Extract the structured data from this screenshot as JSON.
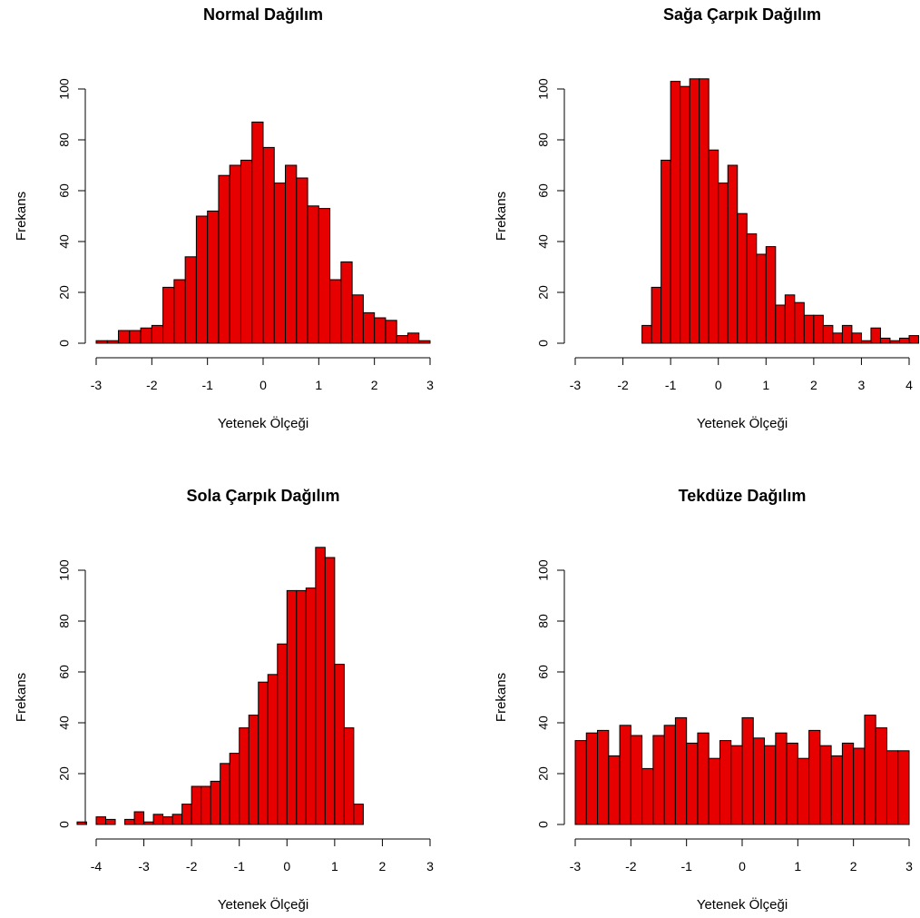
{
  "colors": {
    "bar_fill": "#e60000",
    "bar_stroke": "#000000"
  },
  "chart_data": [
    {
      "type": "bar",
      "title": "Normal Dağılım",
      "xlabel": "Yetenek Ölçeği",
      "ylabel": "Frekans",
      "xlim": [
        -3,
        3
      ],
      "ylim": [
        0,
        100
      ],
      "x_ticks": [
        -3,
        -2,
        -1,
        0,
        1,
        2,
        3
      ],
      "y_ticks": [
        0,
        20,
        40,
        60,
        80,
        100
      ],
      "bin_start": -3.0,
      "bin_width": 0.2,
      "values": [
        1,
        1,
        5,
        5,
        6,
        7,
        22,
        25,
        34,
        50,
        52,
        66,
        70,
        72,
        87,
        77,
        63,
        70,
        65,
        54,
        53,
        25,
        32,
        19,
        12,
        10,
        9,
        3,
        4,
        1
      ]
    },
    {
      "type": "bar",
      "title": "Sağa Çarpık Dağılım",
      "xlabel": "Yetenek Ölçeği",
      "ylabel": "Frekans",
      "xlim": [
        -3,
        4
      ],
      "ylim": [
        0,
        100
      ],
      "x_ticks": [
        -3,
        -2,
        -1,
        0,
        1,
        2,
        3,
        4
      ],
      "y_ticks": [
        0,
        20,
        40,
        60,
        80,
        100
      ],
      "bin_start": -1.6,
      "bin_width": 0.2,
      "values": [
        7,
        22,
        72,
        103,
        101,
        104,
        104,
        76,
        63,
        70,
        51,
        43,
        35,
        38,
        15,
        19,
        16,
        11,
        11,
        7,
        4,
        7,
        4,
        1,
        6,
        2,
        1,
        2,
        3
      ]
    },
    {
      "type": "bar",
      "title": "Sola Çarpık Dağılım",
      "xlabel": "Yetenek Ölçeği",
      "ylabel": "Frekans",
      "xlim": [
        -4,
        3
      ],
      "ylim": [
        0,
        100
      ],
      "x_ticks": [
        -4,
        -3,
        -2,
        -1,
        0,
        1,
        2,
        3
      ],
      "y_ticks": [
        0,
        20,
        40,
        60,
        80,
        100
      ],
      "bin_start": -4.4,
      "bin_width": 0.2,
      "values": [
        1,
        0,
        3,
        2,
        0,
        2,
        5,
        1,
        4,
        3,
        4,
        8,
        15,
        15,
        17,
        24,
        28,
        38,
        43,
        56,
        59,
        71,
        92,
        92,
        93,
        109,
        105,
        63,
        38,
        8
      ]
    },
    {
      "type": "bar",
      "title": "Tekdüze Dağılım",
      "xlabel": "Yetenek Ölçeği",
      "ylabel": "Frekans",
      "xlim": [
        -3,
        3
      ],
      "ylim": [
        0,
        100
      ],
      "x_ticks": [
        -3,
        -2,
        -1,
        0,
        1,
        2,
        3
      ],
      "y_ticks": [
        0,
        20,
        40,
        60,
        80,
        100
      ],
      "bin_start": -3.0,
      "bin_width": 0.2,
      "values": [
        33,
        36,
        37,
        27,
        39,
        35,
        22,
        35,
        39,
        42,
        32,
        36,
        26,
        33,
        31,
        42,
        34,
        31,
        36,
        32,
        26,
        37,
        31,
        27,
        32,
        30,
        43,
        38,
        29,
        29
      ]
    }
  ]
}
